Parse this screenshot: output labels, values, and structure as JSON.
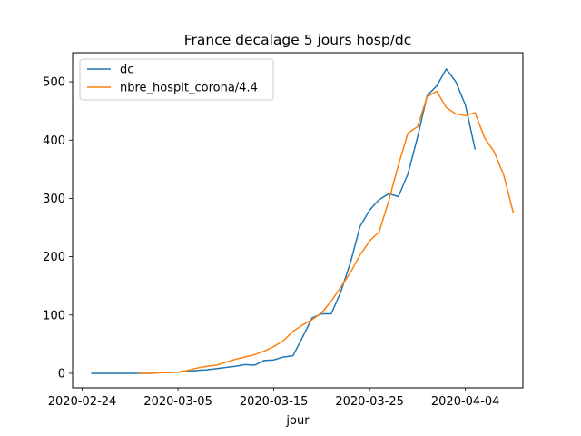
{
  "chart_data": {
    "type": "line",
    "title": "France decalage 5 jours hosp/dc",
    "xlabel": "jour",
    "ylabel": "",
    "x_type": "date",
    "xlim": [
      "2020-02-23",
      "2020-04-10"
    ],
    "ylim": [
      -25,
      550
    ],
    "x_ticks": [
      "2020-02-24",
      "2020-03-05",
      "2020-03-15",
      "2020-03-25",
      "2020-04-04"
    ],
    "y_ticks": [
      0,
      100,
      200,
      300,
      400,
      500
    ],
    "grid": false,
    "legend_position": "top-left",
    "series": [
      {
        "name": "dc",
        "color": "#1f77b4",
        "points": [
          [
            "2020-02-25",
            0
          ],
          [
            "2020-02-26",
            0
          ],
          [
            "2020-02-27",
            0
          ],
          [
            "2020-02-28",
            0
          ],
          [
            "2020-02-29",
            0
          ],
          [
            "2020-03-01",
            0
          ],
          [
            "2020-03-02",
            0
          ],
          [
            "2020-03-03",
            1
          ],
          [
            "2020-03-04",
            1
          ],
          [
            "2020-03-05",
            2
          ],
          [
            "2020-03-06",
            3
          ],
          [
            "2020-03-07",
            5
          ],
          [
            "2020-03-08",
            6
          ],
          [
            "2020-03-09",
            8
          ],
          [
            "2020-03-10",
            10
          ],
          [
            "2020-03-11",
            12
          ],
          [
            "2020-03-12",
            15
          ],
          [
            "2020-03-13",
            14
          ],
          [
            "2020-03-14",
            22
          ],
          [
            "2020-03-15",
            23
          ],
          [
            "2020-03-16",
            28
          ],
          [
            "2020-03-17",
            30
          ],
          [
            "2020-03-18",
            62
          ],
          [
            "2020-03-19",
            95
          ],
          [
            "2020-03-20",
            102
          ],
          [
            "2020-03-21",
            102
          ],
          [
            "2020-03-22",
            140
          ],
          [
            "2020-03-23",
            190
          ],
          [
            "2020-03-24",
            252
          ],
          [
            "2020-03-25",
            280
          ],
          [
            "2020-03-26",
            298
          ],
          [
            "2020-03-27",
            308
          ],
          [
            "2020-03-28",
            303
          ],
          [
            "2020-03-29",
            342
          ],
          [
            "2020-03-30",
            405
          ],
          [
            "2020-03-31",
            476
          ],
          [
            "2020-04-01",
            493
          ],
          [
            "2020-04-02",
            522
          ],
          [
            "2020-04-03",
            500
          ],
          [
            "2020-04-04",
            460
          ],
          [
            "2020-04-05",
            385
          ]
        ]
      },
      {
        "name": "nbre_hospit_corona/4.4",
        "color": "#ff7f0e",
        "points": [
          [
            "2020-03-01",
            0
          ],
          [
            "2020-03-02",
            0
          ],
          [
            "2020-03-03",
            1
          ],
          [
            "2020-03-04",
            1
          ],
          [
            "2020-03-05",
            2
          ],
          [
            "2020-03-06",
            5
          ],
          [
            "2020-03-07",
            9
          ],
          [
            "2020-03-08",
            12
          ],
          [
            "2020-03-09",
            14
          ],
          [
            "2020-03-10",
            19
          ],
          [
            "2020-03-11",
            24
          ],
          [
            "2020-03-12",
            28
          ],
          [
            "2020-03-13",
            32
          ],
          [
            "2020-03-14",
            38
          ],
          [
            "2020-03-15",
            46
          ],
          [
            "2020-03-16",
            56
          ],
          [
            "2020-03-17",
            72
          ],
          [
            "2020-03-18",
            83
          ],
          [
            "2020-03-19",
            92
          ],
          [
            "2020-03-20",
            104
          ],
          [
            "2020-03-21",
            124
          ],
          [
            "2020-03-22",
            148
          ],
          [
            "2020-03-23",
            173
          ],
          [
            "2020-03-24",
            203
          ],
          [
            "2020-03-25",
            227
          ],
          [
            "2020-03-26",
            243
          ],
          [
            "2020-03-27",
            296
          ],
          [
            "2020-03-28",
            357
          ],
          [
            "2020-03-29",
            412
          ],
          [
            "2020-03-30",
            423
          ],
          [
            "2020-03-31",
            474
          ],
          [
            "2020-04-01",
            484
          ],
          [
            "2020-04-02",
            456
          ],
          [
            "2020-04-03",
            445
          ],
          [
            "2020-04-04",
            442
          ],
          [
            "2020-04-05",
            447
          ],
          [
            "2020-04-06",
            404
          ],
          [
            "2020-04-07",
            380
          ],
          [
            "2020-04-08",
            340
          ],
          [
            "2020-04-09",
            275
          ]
        ]
      }
    ]
  }
}
